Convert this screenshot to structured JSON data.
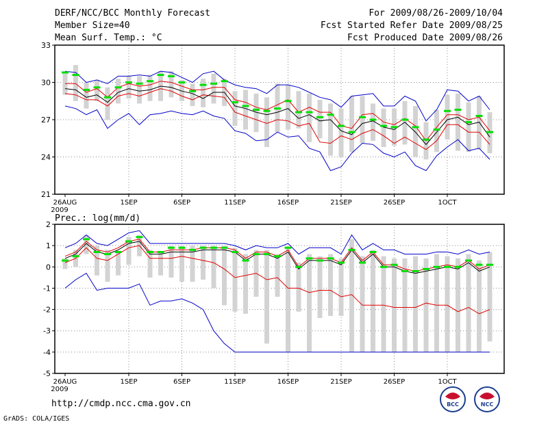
{
  "header": {
    "title": "DERF/NCC/BCC Monthly Forecast",
    "member": "Member Size=40",
    "variable": "Mean Surf. Temp.: °C",
    "period": "For 2009/08/26-2009/10/04",
    "started": "Fcst Started Refer Date 2009/08/25",
    "produced": "Fcst Produced Date 2009/08/26"
  },
  "footer": {
    "url": "http://cmdp.ncc.cma.gov.cn",
    "grads": "GrADS: COLA/IGES",
    "logo_bcc": "BCC",
    "logo_ncc": "NCC"
  },
  "colors": {
    "box": "#d3d3d3",
    "median": "#00e000",
    "mean": "#000000",
    "spread": "#e00000",
    "range": "#0000c8",
    "grid": "#888888"
  },
  "chart_data": [
    {
      "type": "box-line",
      "title": "Mean Surf. Temp.: °C",
      "ylabel": "°C",
      "ylim": [
        21,
        33
      ],
      "yticks": [
        21,
        24,
        27,
        30,
        33
      ],
      "grid": true,
      "days": 40,
      "xticks": [
        {
          "day": 0,
          "label": "26AUG",
          "sub": "2009"
        },
        {
          "day": 6,
          "label": "1SEP"
        },
        {
          "day": 11,
          "label": "6SEP"
        },
        {
          "day": 16,
          "label": "11SEP"
        },
        {
          "day": 21,
          "label": "16SEP"
        },
        {
          "day": 26,
          "label": "21SEP"
        },
        {
          "day": 31,
          "label": "26SEP"
        },
        {
          "day": 36,
          "label": "1OCT",
          "display": "1OCT"
        }
      ],
      "mean": [
        29.5,
        29.4,
        28.8,
        29.0,
        28.4,
        29.2,
        29.5,
        29.3,
        29.4,
        29.7,
        29.6,
        29.3,
        29.1,
        28.7,
        29.2,
        29.2,
        28.1,
        27.9,
        27.6,
        27.4,
        27.6,
        27.9,
        27.1,
        27.4,
        26.9,
        27.0,
        26.1,
        25.8,
        26.7,
        26.9,
        26.4,
        26.2,
        26.8,
        26.0,
        25.0,
        26.0,
        27.0,
        27.2,
        26.6,
        26.8,
        25.6
      ],
      "upper": [
        29.9,
        29.9,
        29.2,
        29.5,
        28.8,
        29.6,
        29.9,
        29.7,
        29.8,
        30.1,
        30.0,
        29.7,
        29.4,
        29.4,
        29.6,
        29.6,
        28.6,
        28.4,
        28.0,
        27.8,
        28.2,
        28.6,
        27.6,
        28.0,
        27.6,
        27.6,
        26.5,
        26.3,
        27.4,
        27.5,
        26.8,
        26.6,
        27.1,
        26.5,
        25.3,
        26.4,
        27.4,
        27.4,
        27.0,
        27.2,
        26.1
      ],
      "lower": [
        29.1,
        29.0,
        28.6,
        28.6,
        28.1,
        28.9,
        29.1,
        28.9,
        29.2,
        29.5,
        29.3,
        28.9,
        28.6,
        29.0,
        28.9,
        28.8,
        27.6,
        27.3,
        27.0,
        26.7,
        27.0,
        26.9,
        26.5,
        26.7,
        25.2,
        25.1,
        25.7,
        25.4,
        25.9,
        26.2,
        25.7,
        25.1,
        25.6,
        25.1,
        24.6,
        25.3,
        26.6,
        26.6,
        26.0,
        26.0,
        25.0
      ],
      "max": [
        30.9,
        30.8,
        30.0,
        30.2,
        29.9,
        30.5,
        30.5,
        30.6,
        30.5,
        30.9,
        30.8,
        30.4,
        30.0,
        30.7,
        30.9,
        30.2,
        29.8,
        29.6,
        29.5,
        29.1,
        29.8,
        29.8,
        29.6,
        29.2,
        28.8,
        28.6,
        28.0,
        28.9,
        29.0,
        29.1,
        28.1,
        28.1,
        28.9,
        28.5,
        26.9,
        27.8,
        29.4,
        29.3,
        28.5,
        28.9,
        27.8
      ],
      "min": [
        28.1,
        27.9,
        27.4,
        27.8,
        26.3,
        27.0,
        27.5,
        26.6,
        27.4,
        27.5,
        27.7,
        27.5,
        27.4,
        27.7,
        27.3,
        27.1,
        26.1,
        25.9,
        25.3,
        25.4,
        26.0,
        25.6,
        25.7,
        24.7,
        24.4,
        22.9,
        23.2,
        24.3,
        25.1,
        25.0,
        24.3,
        24.0,
        24.4,
        23.3,
        22.9,
        24.1,
        24.8,
        25.4,
        24.5,
        24.7,
        23.8
      ],
      "median": [
        30.8,
        30.6,
        29.4,
        29.6,
        28.8,
        29.6,
        30.0,
        29.9,
        30.1,
        30.6,
        30.5,
        30.0,
        29.3,
        29.8,
        29.9,
        30.1,
        28.4,
        28.1,
        27.8,
        27.7,
        27.9,
        28.5,
        27.6,
        27.6,
        27.2,
        27.4,
        26.5,
        26.0,
        27.2,
        27.0,
        26.5,
        26.4,
        27.0,
        26.4,
        25.4,
        26.2,
        27.7,
        27.8,
        26.8,
        27.3,
        26.0
      ],
      "box_top": [
        30.8,
        31.4,
        30.0,
        30.2,
        29.6,
        30.3,
        30.5,
        30.5,
        30.6,
        30.9,
        30.9,
        30.2,
        29.9,
        30.3,
        30.7,
        30.3,
        29.3,
        29.4,
        29.1,
        28.8,
        29.9,
        29.8,
        29.3,
        29.1,
        28.6,
        28.3,
        27.9,
        28.9,
        28.9,
        28.3,
        27.9,
        27.9,
        28.5,
        28.1,
        26.8,
        27.8,
        29.0,
        29.1,
        28.4,
        28.9,
        27.6
      ],
      "box_bottom": [
        29.0,
        28.5,
        27.9,
        28.5,
        27.0,
        28.3,
        28.7,
        28.3,
        28.5,
        28.5,
        28.8,
        28.5,
        28.1,
        28.0,
        28.3,
        28.1,
        26.5,
        26.2,
        26.0,
        24.8,
        26.0,
        26.2,
        26.3,
        25.2,
        25.5,
        24.1,
        24.0,
        24.4,
        25.1,
        25.3,
        24.8,
        24.9,
        25.0,
        24.0,
        23.8,
        24.4,
        25.4,
        24.5,
        24.4,
        24.6,
        24.3
      ]
    },
    {
      "type": "box-line",
      "title": "Prec.: log(mm/d)",
      "ylabel": "log(mm/d)",
      "ylim": [
        -5,
        2
      ],
      "yticks": [
        -5,
        -4,
        -3,
        -2,
        -1,
        0,
        1,
        2
      ],
      "grid": true,
      "days": 40,
      "xticks": [
        {
          "day": 0,
          "label": "26AUG",
          "sub": "2009"
        },
        {
          "day": 6,
          "label": "1SEP"
        },
        {
          "day": 11,
          "label": "6SEP"
        },
        {
          "day": 16,
          "label": "11SEP"
        },
        {
          "day": 21,
          "label": "16SEP"
        },
        {
          "day": 26,
          "label": "21SEP"
        },
        {
          "day": 31,
          "label": "26SEP"
        },
        {
          "day": 36,
          "label": "1OCT"
        }
      ],
      "mean": [
        0.4,
        0.6,
        1.1,
        0.7,
        0.6,
        0.8,
        1.1,
        1.2,
        0.6,
        0.6,
        0.7,
        0.7,
        0.7,
        0.8,
        0.8,
        0.8,
        0.7,
        0.3,
        0.6,
        0.6,
        0.4,
        0.7,
        -0.1,
        0.3,
        0.3,
        0.3,
        0.1,
        0.8,
        0.2,
        0.6,
        0.0,
        0.0,
        -0.2,
        -0.3,
        -0.2,
        -0.1,
        0.0,
        -0.1,
        0.2,
        -0.2,
        0.0
      ],
      "upper": [
        0.5,
        0.7,
        1.2,
        0.8,
        0.7,
        0.9,
        1.2,
        1.3,
        0.7,
        0.7,
        0.8,
        0.8,
        0.8,
        0.9,
        0.9,
        0.9,
        0.8,
        0.4,
        0.7,
        0.7,
        0.5,
        0.8,
        0.0,
        0.4,
        0.4,
        0.4,
        0.2,
        0.9,
        0.3,
        0.7,
        0.1,
        0.1,
        -0.1,
        -0.2,
        -0.1,
        0.0,
        0.1,
        0.0,
        0.3,
        -0.1,
        0.1
      ],
      "lower": [
        0.2,
        0.4,
        0.9,
        0.4,
        0.3,
        0.6,
        0.9,
        1.0,
        0.4,
        0.4,
        0.4,
        0.5,
        0.4,
        0.3,
        0.2,
        -0.1,
        -0.5,
        -0.4,
        -0.3,
        -0.6,
        -0.5,
        -1.0,
        -1.0,
        -1.2,
        -1.1,
        -1.1,
        -1.4,
        -1.3,
        -1.8,
        -1.8,
        -1.8,
        -1.9,
        -1.9,
        -1.9,
        -1.7,
        -1.8,
        -1.8,
        -2.1,
        -1.9,
        -2.2,
        -2.0
      ],
      "max": [
        0.9,
        1.1,
        1.5,
        1.1,
        1.0,
        1.3,
        1.6,
        1.7,
        1.1,
        1.1,
        1.1,
        1.1,
        1.1,
        1.1,
        1.1,
        1.1,
        1.0,
        0.8,
        1.0,
        0.9,
        0.9,
        1.1,
        0.6,
        0.9,
        0.9,
        0.9,
        0.6,
        1.5,
        0.8,
        1.1,
        0.8,
        0.8,
        0.6,
        0.6,
        0.6,
        0.7,
        0.7,
        0.6,
        0.8,
        0.6,
        0.7
      ],
      "min": [
        -1.0,
        -0.6,
        -0.3,
        -1.1,
        -1.0,
        -1.0,
        -1.0,
        -0.8,
        -1.8,
        -1.6,
        -1.6,
        -1.5,
        -1.7,
        -2.0,
        -3.0,
        -3.6,
        -4.0,
        -4.0,
        -4.0,
        -4.0,
        -4.0,
        -4.0,
        -4.0,
        -4.0,
        -4.0,
        -4.0,
        -4.0,
        -4.0,
        -4.0,
        -4.0,
        -4.0,
        -4.0,
        -4.0,
        -4.0,
        -4.0,
        -4.0,
        -4.0,
        -4.0,
        -4.0,
        -4.0,
        -4.0
      ],
      "median": [
        0.3,
        0.5,
        1.3,
        0.7,
        0.6,
        0.7,
        1.2,
        1.4,
        0.7,
        0.7,
        0.9,
        0.9,
        0.8,
        0.9,
        0.9,
        0.9,
        0.7,
        0.3,
        0.6,
        0.6,
        0.5,
        0.9,
        0.0,
        0.4,
        0.3,
        0.4,
        0.2,
        0.8,
        0.2,
        0.7,
        0.0,
        0.1,
        -0.2,
        -0.2,
        -0.1,
        0.0,
        0.0,
        0.0,
        0.3,
        0.1,
        0.1
      ],
      "box_top": [
        0.4,
        0.8,
        1.5,
        1.0,
        0.8,
        0.7,
        1.4,
        1.5,
        0.8,
        0.7,
        1.0,
        1.0,
        1.0,
        1.0,
        1.0,
        1.0,
        0.9,
        0.6,
        0.8,
        0.8,
        0.6,
        0.9,
        0.2,
        0.6,
        0.5,
        0.6,
        0.4,
        1.3,
        0.5,
        0.8,
        0.5,
        0.4,
        0.4,
        0.5,
        0.4,
        0.6,
        0.5,
        0.4,
        0.6,
        0.3,
        0.7
      ],
      "box_bottom": [
        -0.1,
        0.0,
        0.6,
        -0.4,
        -0.7,
        -0.4,
        0.1,
        0.5,
        -0.5,
        -0.4,
        -0.5,
        -0.7,
        -0.7,
        -0.6,
        -1.0,
        -1.8,
        -2.1,
        -2.2,
        -1.4,
        -3.6,
        -1.4,
        -4.0,
        -2.1,
        -4.0,
        -2.4,
        -2.3,
        -2.3,
        -4.0,
        -4.0,
        -4.0,
        -4.0,
        -4.0,
        -4.0,
        -4.0,
        -4.0,
        -4.0,
        -4.0,
        -4.0,
        -4.0,
        -4.0,
        -3.5
      ]
    }
  ]
}
